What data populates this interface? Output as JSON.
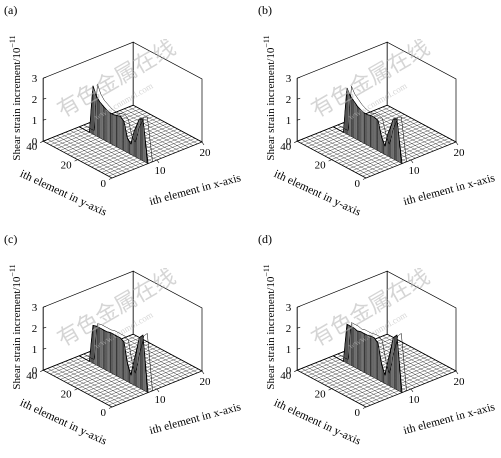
{
  "figure": {
    "panels": [
      "(a)",
      "(b)",
      "(c)",
      "(d)"
    ],
    "axis_labels": {
      "z": "Shear strain increment/",
      "z_unit_base": "10",
      "z_unit_exp": "−11",
      "y": "ith element in y-axis",
      "x": "ith element in x-axis"
    },
    "watermark_cn": "有色金属在线",
    "watermark_url": "www.cnnmol.com"
  },
  "chart_data": [
    {
      "panel": "(a)",
      "type": "surface3d",
      "zlabel": "Shear strain increment/10^-11",
      "ylabel": "ith element in y-axis",
      "xlabel": "ith element in x-axis",
      "x_ticks": [
        10,
        20
      ],
      "y_ticks": [
        0,
        20,
        40
      ],
      "z_ticks": [
        0,
        1,
        2,
        3
      ],
      "xlim": [
        0,
        20
      ],
      "ylim": [
        0,
        40
      ],
      "zlim": [
        0,
        3
      ],
      "band_x_range": [
        8,
        9
      ],
      "profile_y": [
        0,
        3,
        5,
        8,
        10,
        12,
        14,
        16,
        18,
        20,
        22,
        24,
        26,
        28,
        30,
        32,
        34,
        36,
        38,
        40
      ],
      "profile_z": [
        0,
        2.0,
        1.9,
        1.2,
        0.5,
        0.7,
        1.4,
        1.55,
        1.5,
        1.45,
        1.45,
        1.5,
        1.6,
        1.7,
        1.9,
        2.3,
        0,
        0,
        0,
        0
      ]
    },
    {
      "panel": "(b)",
      "type": "surface3d",
      "zlabel": "Shear strain increment/10^-11",
      "ylabel": "ith element in y-axis",
      "xlabel": "ith element in x-axis",
      "x_ticks": [
        10,
        20
      ],
      "y_ticks": [
        0,
        20,
        40
      ],
      "z_ticks": [
        0,
        1,
        2,
        3
      ],
      "xlim": [
        0,
        20
      ],
      "ylim": [
        0,
        40
      ],
      "zlim": [
        0,
        3
      ],
      "band_x_range": [
        8,
        9
      ],
      "profile_y": [
        0,
        3,
        5,
        8,
        10,
        12,
        14,
        16,
        18,
        20,
        22,
        24,
        26,
        28,
        30,
        32,
        34,
        36,
        38,
        40
      ],
      "profile_z": [
        0,
        2.0,
        1.9,
        1.1,
        0.4,
        0.8,
        1.45,
        1.5,
        1.5,
        1.45,
        1.45,
        1.5,
        1.6,
        1.75,
        1.9,
        2.2,
        0,
        0,
        0,
        0
      ]
    },
    {
      "panel": "(c)",
      "type": "surface3d",
      "zlabel": "Shear strain increment/10^-11",
      "ylabel": "ith element in y-axis",
      "xlabel": "ith element in x-axis",
      "x_ticks": [
        10,
        20
      ],
      "y_ticks": [
        0,
        20,
        40
      ],
      "z_ticks": [
        0,
        1,
        2,
        3
      ],
      "xlim": [
        0,
        20
      ],
      "ylim": [
        0,
        40
      ],
      "zlim": [
        0,
        3
      ],
      "band_x_range": [
        8,
        9
      ],
      "profile_y": [
        0,
        3,
        5,
        8,
        10,
        12,
        14,
        16,
        18,
        20,
        22,
        24,
        26,
        28,
        30,
        32,
        34,
        36,
        38,
        40
      ],
      "profile_z": [
        0,
        2.6,
        2.4,
        1.2,
        0.4,
        0.9,
        1.8,
        1.9,
        1.9,
        1.9,
        1.9,
        1.85,
        1.85,
        1.85,
        1.85,
        1.8,
        0,
        0,
        0,
        0
      ]
    },
    {
      "panel": "(d)",
      "type": "surface3d",
      "zlabel": "Shear strain increment/10^-11",
      "ylabel": "ith element in y-axis",
      "xlabel": "ith element in x-axis",
      "x_ticks": [
        10,
        20
      ],
      "y_ticks": [
        0,
        20,
        40
      ],
      "z_ticks": [
        0,
        1,
        2,
        3
      ],
      "xlim": [
        0,
        20
      ],
      "ylim": [
        0,
        40
      ],
      "zlim": [
        0,
        3
      ],
      "band_x_range": [
        8,
        9
      ],
      "profile_y": [
        0,
        3,
        5,
        8,
        10,
        12,
        14,
        16,
        18,
        20,
        22,
        24,
        26,
        28,
        30,
        32,
        34,
        36,
        38,
        40
      ],
      "profile_z": [
        0,
        2.6,
        2.4,
        1.2,
        0.4,
        0.9,
        1.75,
        1.9,
        1.9,
        1.85,
        1.85,
        1.85,
        1.8,
        1.85,
        1.85,
        1.85,
        0,
        0,
        0,
        0
      ]
    }
  ]
}
